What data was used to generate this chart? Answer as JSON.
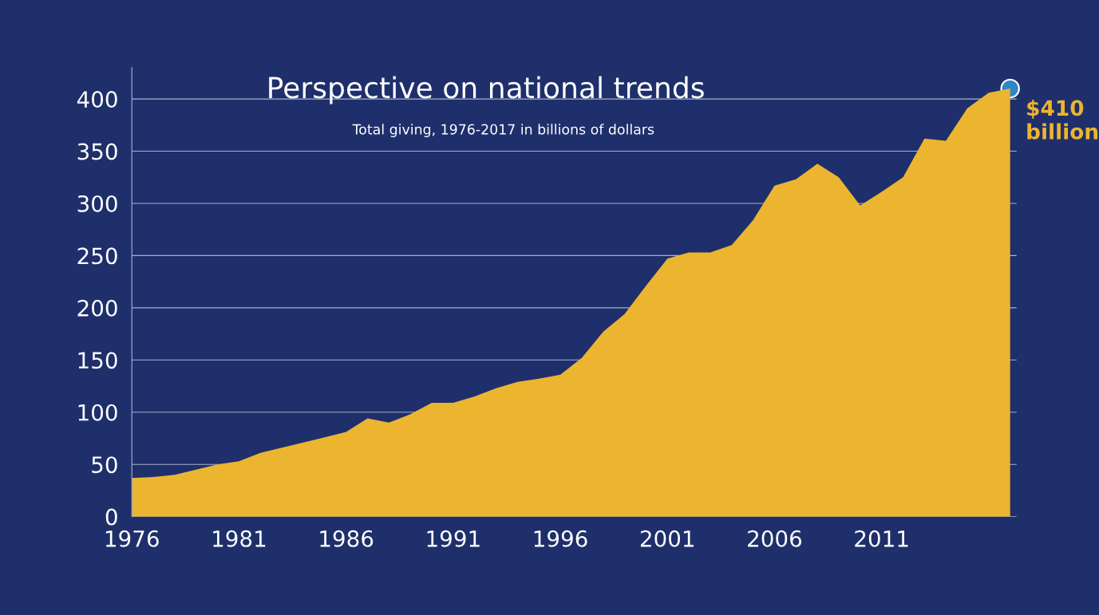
{
  "chart_data": {
    "type": "area",
    "title": "Perspective on national trends",
    "subtitle": "Total giving, 1976-2017 in billions of dollars",
    "x": [
      1976,
      1977,
      1978,
      1979,
      1980,
      1981,
      1982,
      1983,
      1984,
      1985,
      1986,
      1987,
      1988,
      1989,
      1990,
      1991,
      1992,
      1993,
      1994,
      1995,
      1996,
      1997,
      1998,
      1999,
      2000,
      2001,
      2002,
      2003,
      2004,
      2005,
      2006,
      2007,
      2008,
      2009,
      2010,
      2011,
      2012,
      2013,
      2014,
      2015,
      2016,
      2017
    ],
    "series": [
      {
        "type": "area",
        "color": "#ebb530",
        "values": [
          37,
          38,
          40,
          45,
          50,
          53,
          61,
          66,
          71,
          76,
          81,
          94,
          90,
          98,
          109,
          109,
          115,
          123,
          129,
          132,
          136,
          152,
          177,
          194,
          221,
          247,
          253,
          253,
          260,
          284,
          317,
          323,
          338,
          325,
          298,
          311,
          325,
          362,
          360,
          391,
          406,
          410
        ]
      },
      {
        "type": "scatter",
        "color": "#2e86c8",
        "x": [
          2017
        ],
        "values": [
          410
        ]
      }
    ],
    "annotations": [
      {
        "text": "$410\nbillion",
        "x": 2017,
        "y": 410
      }
    ],
    "xlim": [
      1976,
      2017.3
    ],
    "xticks": [
      1976,
      1981,
      1986,
      1991,
      1996,
      2001,
      2006,
      2011
    ],
    "ylim": [
      0,
      430
    ],
    "yticks": [
      0,
      50,
      100,
      150,
      200,
      250,
      300,
      350,
      400
    ],
    "grid": "y"
  }
}
